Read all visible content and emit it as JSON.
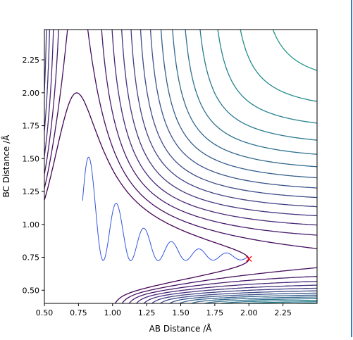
{
  "chart_data": {
    "type": "contour",
    "xlabel": "AB Distance /Å",
    "ylabel": "BC Distance /Å",
    "xlim": [
      0.5,
      2.5
    ],
    "ylim": [
      0.4,
      2.48
    ],
    "xticks": [
      "0.50",
      "0.75",
      "1.00",
      "1.25",
      "1.50",
      "1.75",
      "2.00",
      "2.25"
    ],
    "yticks": [
      "0.50",
      "0.75",
      "1.00",
      "1.25",
      "1.50",
      "1.75",
      "2.00",
      "2.25"
    ],
    "xtick_values": [
      0.5,
      0.75,
      1.0,
      1.25,
      1.5,
      1.75,
      2.0,
      2.25
    ],
    "ytick_values": [
      0.5,
      0.75,
      1.0,
      1.25,
      1.5,
      1.75,
      2.0,
      2.25
    ],
    "grid": false,
    "legend": "none",
    "colormap": "viridis",
    "marker": {
      "label": "×",
      "x": 2.0,
      "y": 0.74,
      "color": "#ff0000"
    },
    "trajectory_color": "#3355dd",
    "contour_overlay": "cyan-green dashed levels",
    "surface": "LEPS-like potential energy surface"
  }
}
